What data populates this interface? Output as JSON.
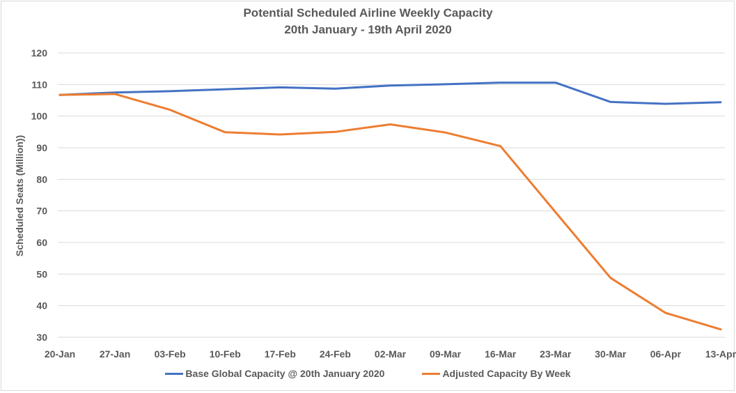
{
  "chart_data": {
    "type": "line",
    "title": "Potential Scheduled Airline Weekly Capacity",
    "subtitle": "20th January - 19th April 2020",
    "xlabel": "",
    "ylabel": "Scheduled Seats (Million))",
    "ylim": [
      30,
      120
    ],
    "yticks": [
      120,
      110,
      100,
      90,
      80,
      70,
      60,
      50,
      40,
      30
    ],
    "grid": true,
    "legend_position": "bottom",
    "categories": [
      "20-Jan",
      "27-Jan",
      "03-Feb",
      "10-Feb",
      "17-Feb",
      "24-Feb",
      "02-Mar",
      "09-Mar",
      "16-Mar",
      "23-Mar",
      "30-Mar",
      "06-Apr",
      "13-Apr"
    ],
    "series": [
      {
        "name": "Base Global Capacity @ 20th January 2020",
        "color": "#4472c4",
        "values": [
          106.7,
          107.5,
          107.9,
          108.5,
          109.1,
          108.7,
          109.7,
          110.1,
          110.6,
          110.6,
          104.5,
          103.9,
          104.4
        ]
      },
      {
        "name": "Adjusted Capacity By Week",
        "color": "#ed7d31",
        "values": [
          106.7,
          107.0,
          102.0,
          94.9,
          94.2,
          95.0,
          97.4,
          94.8,
          90.5,
          69.6,
          48.8,
          37.7,
          32.5
        ]
      }
    ]
  }
}
